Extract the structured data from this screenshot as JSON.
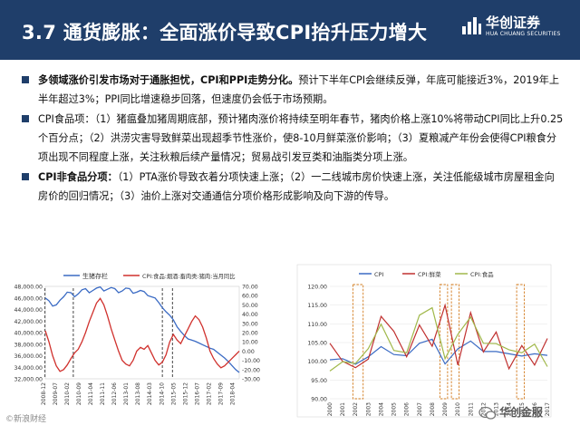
{
  "header": {
    "title": "3.7 通货膨胀：全面涨价导致CPI抬升压力增大",
    "logo_cn": "华创证券",
    "logo_en": "HUA CHUANG SECURITIES",
    "colors": {
      "bar": "#1f3e6a",
      "text": "#ffffff"
    }
  },
  "bullets": [
    {
      "bold": "多领域涨价引发市场对于通胀担忧，CPI和PPI走势分化。",
      "text": "预计下半年CPI会继续反弹，年底可能接近3%，2019年上半年超过3%；PPI同比增速稳步回落，但速度仍会低于市场预期。"
    },
    {
      "bold": "",
      "text": "CPI食品项：（1）猪瘟叠加猪周期底部，预计猪肉涨价将持续至明年春节，猪肉价格上涨10%将带动CPI同比上升0.25个百分点；（2）洪涝灾害导致鲜菜出现超季节性涨价，使8-10月鲜菜涨价影响；（3）夏粮减产年份会使得CPI粮食分项出现不同程度上涨，关注秋粮后续产量情况；贸易战引发豆类和油脂类分项上涨。"
    },
    {
      "bold": "CPI非食品分项：",
      "text": "（1）PTA涨价导致衣着分项快速上涨；（2）一二线城市房价快速上涨，关注低能级城市房屋租金向房价的回归情况；（3）油价上涨对交通通信分项价格形成影响及向下游的传导。"
    }
  ],
  "chart_data": [
    {
      "type": "line",
      "title": "",
      "legend": [
        "生猪存栏",
        "CPI:食品:烟酒:畜肉类:猪肉:当月同比"
      ],
      "legend_position": "top",
      "x_ticks": [
        "2008-12",
        "2009-07",
        "2010-02",
        "2010-09",
        "2011-04",
        "2011-11",
        "2012-06",
        "2013-01",
        "2013-08",
        "2014-03",
        "2014-10",
        "2015-05",
        "2015-12",
        "2016-07",
        "2017-02",
        "2017-09",
        "2018-04"
      ],
      "left_axis": {
        "ticks": [
          "32,000.00",
          "34,000.00",
          "36,000.00",
          "38,000.00",
          "40,000.00",
          "42,000.00",
          "44,000.00",
          "46,000.00",
          "48,000.00"
        ],
        "ylim": [
          32000,
          48000
        ]
      },
      "right_axis": {
        "ticks": [
          "-30.00",
          "-20.00",
          "-10.00",
          "0.00",
          "10.00",
          "20.00",
          "30.00",
          "40.00",
          "50.00",
          "60.00",
          "70.00"
        ],
        "ylim": [
          -30,
          70
        ]
      },
      "series": [
        {
          "name": "生猪存栏",
          "axis": "left",
          "color": "#3b6bc4",
          "values": [
            46000,
            45500,
            44600,
            44800,
            45600,
            46200,
            47000,
            46900,
            46200,
            46700,
            47400,
            47600,
            46900,
            47300,
            47700,
            47900,
            47200,
            47500,
            47800,
            47600,
            46900,
            47200,
            47700,
            47600,
            46800,
            47000,
            47300,
            47100,
            46400,
            46200,
            46000,
            45200,
            44300,
            43600,
            43000,
            42200,
            41000,
            40200,
            39500,
            38900,
            38700,
            38500,
            38200,
            37900,
            37600,
            37300,
            37100,
            36600,
            36100,
            35600,
            35000,
            34300,
            33600,
            33100
          ]
        },
        {
          "name": "CPI:食品:烟酒:畜肉类:猪肉:当月同比",
          "axis": "right",
          "color": "#d0312d",
          "values": [
            22,
            10,
            -5,
            -16,
            -22,
            -20,
            -15,
            -8,
            -2,
            2,
            10,
            20,
            32,
            42,
            52,
            57,
            50,
            38,
            24,
            12,
            0,
            -10,
            -14,
            -16,
            -10,
            0,
            4,
            2,
            6,
            -2,
            -10,
            -15,
            -12,
            -4,
            10,
            18,
            12,
            8,
            16,
            24,
            32,
            38,
            34,
            26,
            14,
            0,
            -8,
            -14,
            -18,
            -16,
            -12,
            -8,
            -4,
            0
          ]
        }
      ],
      "highlights": [
        [
          2008.9,
          2010.3
        ],
        [
          2014.7,
          2015.2
        ]
      ]
    },
    {
      "type": "line",
      "title": "",
      "legend": [
        "CPI",
        "CPI:鲜菜",
        "CPI:食品"
      ],
      "legend_position": "top",
      "x_ticks": [
        "2000",
        "2001",
        "2002",
        "2003",
        "2004",
        "2005",
        "2006",
        "2007",
        "2008",
        "2009",
        "2010",
        "2011",
        "2012",
        "2013",
        "2014",
        "2015",
        "2016",
        "2017"
      ],
      "y_axis": {
        "ticks": [
          "90.00",
          "95.00",
          "100.00",
          "105.00",
          "110.00",
          "115.00",
          "120.00"
        ],
        "ylim": [
          90,
          120
        ]
      },
      "series": [
        {
          "name": "CPI",
          "color": "#3b6bc4",
          "values": [
            100.4,
            100.7,
            99.2,
            101.2,
            103.9,
            101.8,
            101.5,
            104.8,
            105.9,
            99.3,
            103.3,
            105.4,
            102.6,
            102.6,
            102.0,
            101.4,
            102.0,
            101.6
          ]
        },
        {
          "name": "CPI:鲜菜",
          "color": "#c0302f",
          "values": [
            104.8,
            100.0,
            98.3,
            100.6,
            112.0,
            108.0,
            101.2,
            109.7,
            104.0,
            115.0,
            99.0,
            113.0,
            102.5,
            107.8,
            98.0,
            104.2,
            99.0,
            106.1
          ]
        },
        {
          "name": "CPI:食品",
          "color": "#a0b84a",
          "values": [
            97.4,
            99.9,
            99.4,
            103.4,
            109.9,
            102.9,
            102.3,
            112.3,
            114.3,
            100.7,
            107.2,
            111.8,
            104.8,
            104.7,
            103.1,
            102.3,
            104.6,
            98.6
          ]
        }
      ],
      "highlights": [
        [
          2001.8,
          2002.6
        ],
        [
          2008.6,
          2009.2
        ],
        [
          2009.5,
          2010.1
        ],
        [
          2014.6,
          2015.2
        ]
      ]
    }
  ],
  "footer": {
    "left": "©新浪财经",
    "right": "华创金服"
  }
}
